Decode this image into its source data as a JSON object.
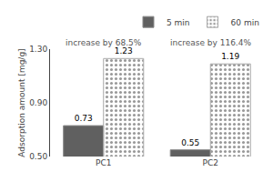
{
  "chart_data": {
    "type": "bar",
    "categories": [
      "PC1",
      "PC2"
    ],
    "series": [
      {
        "name": "5 min",
        "color": "#606060",
        "values": [
          0.73,
          0.55
        ]
      },
      {
        "name": "60 min",
        "color": "#e0ddd8",
        "values": [
          1.23,
          1.19
        ]
      }
    ],
    "ylabel": "Adsorption amount [mg/g]",
    "ylim": [
      0.5,
      1.3
    ],
    "yticks": [
      {
        "value": 0.5,
        "label": "0.50"
      },
      {
        "value": 0.9,
        "label": "0.90"
      },
      {
        "value": 1.3,
        "label": "1.30"
      }
    ],
    "data_labels": true,
    "annotations": [
      "increase by 68.5%",
      "increase by 116.4%"
    ],
    "legend": "upper right",
    "grid": false
  }
}
